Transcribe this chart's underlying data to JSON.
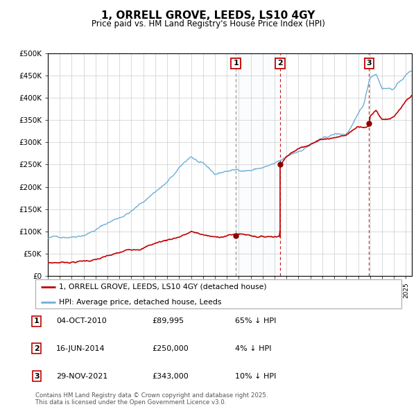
{
  "title": "1, ORRELL GROVE, LEEDS, LS10 4GY",
  "subtitle": "Price paid vs. HM Land Registry's House Price Index (HPI)",
  "ylim": [
    0,
    500000
  ],
  "yticks": [
    0,
    50000,
    100000,
    150000,
    200000,
    250000,
    300000,
    350000,
    400000,
    450000,
    500000
  ],
  "ytick_labels": [
    "£0",
    "£50K",
    "£100K",
    "£150K",
    "£200K",
    "£250K",
    "£300K",
    "£350K",
    "£400K",
    "£450K",
    "£500K"
  ],
  "xlim_start": 1995.0,
  "xlim_end": 2025.5,
  "sale_dates": [
    2010.75,
    2014.46,
    2021.91
  ],
  "sale_prices": [
    89995,
    250000,
    343000
  ],
  "sale_labels": [
    "1",
    "2",
    "3"
  ],
  "vline_styles": [
    "grey_dashed",
    "red_dashed",
    "red_dashed"
  ],
  "hpi_color": "#6baed6",
  "hpi_fill_color": "#deebf7",
  "price_color": "#c00000",
  "sale_dot_color": "#8b0000",
  "background_color": "#ffffff",
  "grid_color": "#cccccc",
  "legend_label_price": "1, ORRELL GROVE, LEEDS, LS10 4GY (detached house)",
  "legend_label_hpi": "HPI: Average price, detached house, Leeds",
  "table_entries": [
    {
      "num": "1",
      "date": "04-OCT-2010",
      "price": "£89,995",
      "pct": "65% ↓ HPI"
    },
    {
      "num": "2",
      "date": "16-JUN-2014",
      "price": "£250,000",
      "pct": "4% ↓ HPI"
    },
    {
      "num": "3",
      "date": "29-NOV-2021",
      "price": "£343,000",
      "pct": "10% ↓ HPI"
    }
  ],
  "footer": "Contains HM Land Registry data © Crown copyright and database right 2025.\nThis data is licensed under the Open Government Licence v3.0.",
  "hpi_anchors_x": [
    1995,
    1996,
    1997,
    1998,
    1999,
    2000,
    2001,
    2002,
    2003,
    2004,
    2005,
    2006,
    2007,
    2008,
    2009,
    2010,
    2011,
    2012,
    2013,
    2014,
    2014.5,
    2015,
    2016,
    2017,
    2018,
    2019,
    2020,
    2021,
    2021.5,
    2022,
    2022.5,
    2023,
    2024,
    2025,
    2025.5
  ],
  "hpi_anchors_y": [
    85000,
    88000,
    92000,
    100000,
    112000,
    127000,
    140000,
    155000,
    175000,
    200000,
    220000,
    248000,
    275000,
    255000,
    230000,
    238000,
    240000,
    242000,
    248000,
    255000,
    258000,
    265000,
    278000,
    295000,
    305000,
    315000,
    315000,
    355000,
    380000,
    440000,
    450000,
    420000,
    420000,
    450000,
    460000
  ],
  "red_anchors_x": [
    1995,
    1996,
    1997,
    1998,
    1999,
    2000,
    2001,
    2002,
    2003,
    2004,
    2005,
    2006,
    2007,
    2008,
    2009,
    2010,
    2010.74,
    2010.75,
    2010.76,
    2011,
    2012,
    2013,
    2014,
    2014.45,
    2014.46,
    2014.47,
    2015,
    2016,
    2017,
    2018,
    2019,
    2020,
    2021,
    2021.9,
    2021.91,
    2021.92,
    2022,
    2022.5,
    2023,
    2024,
    2025,
    2025.5
  ],
  "red_anchors_y": [
    30000,
    31000,
    33000,
    35000,
    38000,
    43000,
    48000,
    55000,
    62000,
    72000,
    79000,
    87000,
    97000,
    90000,
    82000,
    87000,
    88500,
    89995,
    89995,
    90000,
    87000,
    85000,
    87000,
    88000,
    250000,
    250000,
    270000,
    285000,
    300000,
    310000,
    315000,
    320000,
    340000,
    343000,
    343000,
    343000,
    365000,
    380000,
    360000,
    365000,
    395000,
    405000
  ]
}
